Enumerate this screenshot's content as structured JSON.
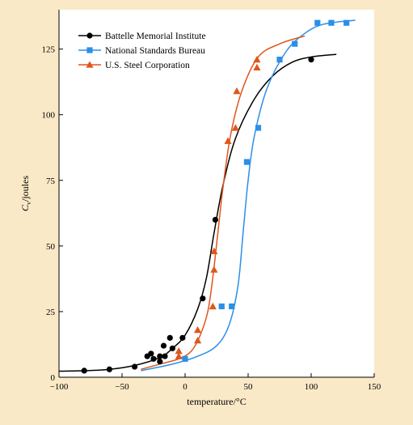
{
  "colors": {
    "background": "#fae9c6",
    "plot_background": "#ffffff",
    "battelle": "#000000",
    "nsb": "#2b8fe8",
    "ussteel": "#e0561b"
  },
  "chart_data": {
    "type": "scatter",
    "xlabel": "temperature/°C",
    "ylabel_main": "C",
    "ylabel_sub": "v",
    "ylabel_rest": "/joules",
    "xlim": [
      -100,
      150
    ],
    "ylim": [
      0,
      140
    ],
    "xticks": [
      -100,
      -50,
      0,
      50,
      100,
      150
    ],
    "yticks": [
      0,
      25,
      50,
      75,
      100,
      125
    ],
    "xtick_labels": [
      "−100",
      "−50",
      "0",
      "50",
      "100",
      "150"
    ],
    "ytick_labels": [
      "0",
      "25",
      "50",
      "75",
      "100",
      "125"
    ],
    "grid": false,
    "legend_position": "top-left",
    "series": [
      {
        "name": "Battelle Memorial Institute",
        "marker": "circle",
        "color_key": "battelle",
        "points": [
          [
            -80,
            2.5
          ],
          [
            -60,
            3
          ],
          [
            -40,
            4
          ],
          [
            -30,
            8
          ],
          [
            -27,
            9
          ],
          [
            -25,
            7
          ],
          [
            -20,
            6
          ],
          [
            -20,
            8
          ],
          [
            -17,
            12
          ],
          [
            -16,
            8
          ],
          [
            -12,
            15
          ],
          [
            -10,
            11
          ],
          [
            -2,
            15
          ],
          [
            14,
            30
          ],
          [
            24,
            60
          ],
          [
            100,
            121
          ]
        ],
        "curve": [
          [
            -100,
            2.3
          ],
          [
            -80,
            2.5
          ],
          [
            -60,
            3
          ],
          [
            -40,
            4.5
          ],
          [
            -20,
            7.5
          ],
          [
            -10,
            11
          ],
          [
            0,
            16
          ],
          [
            10,
            26
          ],
          [
            17,
            38
          ],
          [
            23,
            55
          ],
          [
            30,
            73
          ],
          [
            40,
            91
          ],
          [
            55,
            106
          ],
          [
            70,
            115
          ],
          [
            85,
            120
          ],
          [
            100,
            122
          ],
          [
            120,
            123
          ]
        ]
      },
      {
        "name": "National Standards Bureau",
        "marker": "square",
        "color_key": "nsb",
        "points": [
          [
            0,
            7
          ],
          [
            29,
            27
          ],
          [
            37,
            27
          ],
          [
            49,
            82
          ],
          [
            58,
            95
          ],
          [
            75,
            121
          ],
          [
            87,
            127
          ],
          [
            105,
            135
          ],
          [
            116,
            135
          ],
          [
            128,
            135
          ]
        ],
        "curve": [
          [
            -35,
            2.5
          ],
          [
            -10,
            5
          ],
          [
            10,
            8
          ],
          [
            25,
            12
          ],
          [
            35,
            20
          ],
          [
            42,
            35
          ],
          [
            46,
            55
          ],
          [
            50,
            75
          ],
          [
            55,
            92
          ],
          [
            65,
            110
          ],
          [
            80,
            124
          ],
          [
            95,
            131
          ],
          [
            110,
            134.5
          ],
          [
            135,
            136
          ]
        ]
      },
      {
        "name": "U.S. Steel Corporation",
        "marker": "triangle",
        "color_key": "ussteel",
        "points": [
          [
            -5,
            8
          ],
          [
            -5,
            10
          ],
          [
            10,
            14
          ],
          [
            10,
            18
          ],
          [
            22,
            27
          ],
          [
            23,
            41
          ],
          [
            23,
            48
          ],
          [
            34,
            90
          ],
          [
            40,
            95
          ],
          [
            41,
            109
          ],
          [
            57,
            118
          ],
          [
            57,
            121
          ]
        ],
        "curve": [
          [
            -35,
            3
          ],
          [
            -20,
            5
          ],
          [
            -5,
            7
          ],
          [
            5,
            10
          ],
          [
            12,
            16
          ],
          [
            18,
            25
          ],
          [
            22,
            38
          ],
          [
            26,
            55
          ],
          [
            30,
            72
          ],
          [
            36,
            92
          ],
          [
            45,
            109
          ],
          [
            58,
            122
          ],
          [
            75,
            127
          ],
          [
            95,
            130
          ]
        ]
      }
    ]
  }
}
